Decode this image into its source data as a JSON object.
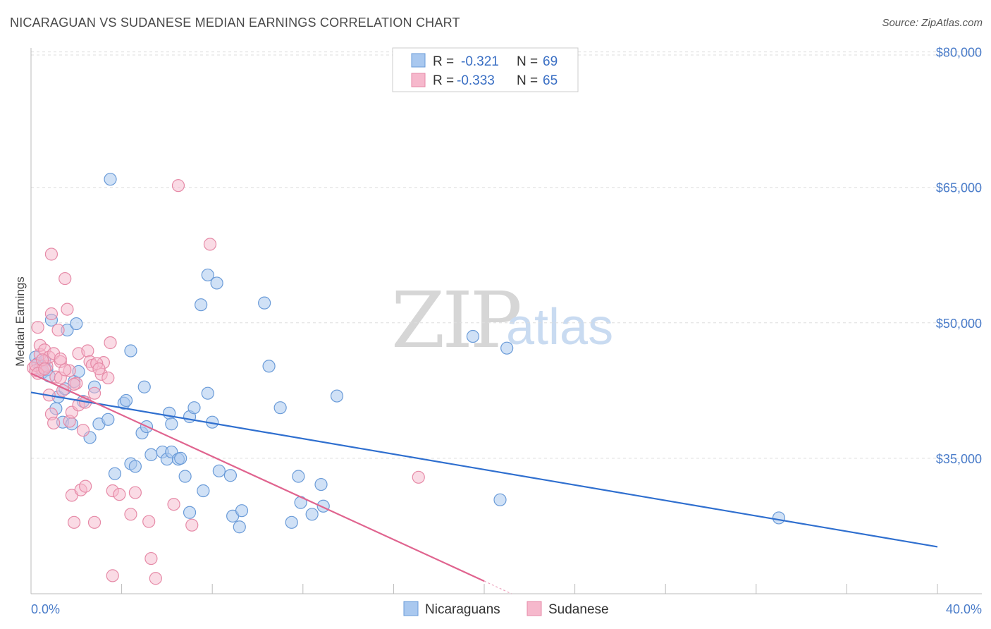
{
  "title": "NICARAGUAN VS SUDANESE MEDIAN EARNINGS CORRELATION CHART",
  "source": "Source: ZipAtlas.com",
  "watermark": {
    "zip": "ZIP",
    "atlas": "atlas"
  },
  "colors": {
    "blue_fill": "#a9c8ef",
    "blue_stroke": "#6a9bd8",
    "blue_line": "#2f6fcf",
    "pink_fill": "#f6b8cc",
    "pink_stroke": "#e68aa7",
    "pink_line": "#e0648f",
    "grid": "#dddddd",
    "axis_text": "#4a7cc9"
  },
  "legend": {
    "rows": [
      {
        "r_label": "R =",
        "r_value": "-0.321",
        "n_label": "N =",
        "n_value": "69"
      },
      {
        "r_label": "R =",
        "r_value": "-0.333",
        "n_label": "N =",
        "n_value": "65"
      }
    ]
  },
  "chart_data": {
    "type": "scatter",
    "title": "NICARAGUAN VS SUDANESE MEDIAN EARNINGS CORRELATION CHART",
    "xlabel": "",
    "ylabel": "Median Earnings",
    "xlim": [
      0,
      40
    ],
    "ylim": [
      20000,
      82000
    ],
    "x_tick_labels": {
      "left": "0.0%",
      "right": "40.0%"
    },
    "y_ticks": [
      {
        "value": 80000,
        "label": "$80,000"
      },
      {
        "value": 65000,
        "label": "$65,000"
      },
      {
        "value": 50000,
        "label": "$50,000"
      },
      {
        "value": 35000,
        "label": "$35,000"
      }
    ],
    "series": [
      {
        "name": "Nicaraguans",
        "r": -0.321,
        "n": 69,
        "trend": {
          "x": [
            0,
            40
          ],
          "y": [
            42300,
            25200
          ]
        },
        "points": [
          [
            0.2,
            46200
          ],
          [
            0.3,
            45500
          ],
          [
            0.4,
            45000
          ],
          [
            0.5,
            44500
          ],
          [
            0.6,
            45800
          ],
          [
            0.7,
            44800
          ],
          [
            0.8,
            44100
          ],
          [
            0.9,
            50300
          ],
          [
            1.1,
            40500
          ],
          [
            1.2,
            41800
          ],
          [
            1.4,
            39000
          ],
          [
            1.5,
            42700
          ],
          [
            1.6,
            49200
          ],
          [
            1.8,
            38800
          ],
          [
            1.9,
            43500
          ],
          [
            2.1,
            44600
          ],
          [
            2.0,
            49900
          ],
          [
            2.3,
            41300
          ],
          [
            2.6,
            37300
          ],
          [
            2.8,
            42900
          ],
          [
            3.0,
            38800
          ],
          [
            3.4,
            39300
          ],
          [
            3.7,
            33300
          ],
          [
            3.5,
            65900
          ],
          [
            4.1,
            41100
          ],
          [
            4.2,
            41400
          ],
          [
            4.4,
            46900
          ],
          [
            4.4,
            34400
          ],
          [
            4.6,
            34100
          ],
          [
            4.9,
            37800
          ],
          [
            5.0,
            42900
          ],
          [
            5.1,
            38500
          ],
          [
            5.3,
            35400
          ],
          [
            5.8,
            35700
          ],
          [
            6.0,
            34900
          ],
          [
            6.1,
            40000
          ],
          [
            6.2,
            38800
          ],
          [
            6.2,
            35700
          ],
          [
            6.5,
            34900
          ],
          [
            6.6,
            35000
          ],
          [
            6.8,
            33000
          ],
          [
            7.0,
            29000
          ],
          [
            7.0,
            39600
          ],
          [
            7.2,
            40600
          ],
          [
            7.5,
            52000
          ],
          [
            7.6,
            31400
          ],
          [
            7.8,
            55300
          ],
          [
            7.8,
            42200
          ],
          [
            8.0,
            39000
          ],
          [
            8.2,
            54400
          ],
          [
            8.3,
            33600
          ],
          [
            8.8,
            33100
          ],
          [
            8.9,
            28600
          ],
          [
            9.2,
            27400
          ],
          [
            9.3,
            29200
          ],
          [
            10.3,
            52200
          ],
          [
            10.5,
            45200
          ],
          [
            11.0,
            40600
          ],
          [
            11.5,
            27900
          ],
          [
            11.8,
            33000
          ],
          [
            11.9,
            30100
          ],
          [
            12.4,
            28800
          ],
          [
            12.8,
            32100
          ],
          [
            12.9,
            29700
          ],
          [
            13.5,
            41900
          ],
          [
            19.5,
            48500
          ],
          [
            20.7,
            30400
          ],
          [
            21.0,
            47200
          ],
          [
            33.0,
            28400
          ]
        ]
      },
      {
        "name": "Sudanese",
        "r": -0.333,
        "n": 65,
        "trend": {
          "x": [
            0,
            20
          ],
          "y": [
            44400,
            21400
          ]
        },
        "trend_dashed": {
          "x": [
            20,
            21.2
          ],
          "y": [
            21400,
            20000
          ]
        },
        "points": [
          [
            0.1,
            45000
          ],
          [
            0.2,
            44700
          ],
          [
            0.3,
            49500
          ],
          [
            0.4,
            46500
          ],
          [
            0.4,
            47500
          ],
          [
            0.5,
            44800
          ],
          [
            0.6,
            47000
          ],
          [
            0.7,
            45200
          ],
          [
            0.8,
            42000
          ],
          [
            0.8,
            46200
          ],
          [
            0.9,
            39900
          ],
          [
            0.9,
            57600
          ],
          [
            0.9,
            51000
          ],
          [
            1.0,
            38900
          ],
          [
            1.0,
            46600
          ],
          [
            1.1,
            44000
          ],
          [
            1.2,
            49200
          ],
          [
            1.3,
            45700
          ],
          [
            1.3,
            46000
          ],
          [
            1.4,
            42500
          ],
          [
            1.5,
            54900
          ],
          [
            1.6,
            51500
          ],
          [
            1.7,
            44700
          ],
          [
            1.7,
            39100
          ],
          [
            1.8,
            40100
          ],
          [
            1.8,
            30900
          ],
          [
            1.9,
            27900
          ],
          [
            2.0,
            43300
          ],
          [
            2.1,
            40900
          ],
          [
            2.1,
            46600
          ],
          [
            2.2,
            31500
          ],
          [
            2.3,
            38100
          ],
          [
            2.4,
            41200
          ],
          [
            2.4,
            31900
          ],
          [
            2.5,
            46900
          ],
          [
            2.6,
            45700
          ],
          [
            2.7,
            45300
          ],
          [
            2.8,
            42200
          ],
          [
            2.8,
            27900
          ],
          [
            3.1,
            44300
          ],
          [
            3.2,
            45600
          ],
          [
            3.4,
            43900
          ],
          [
            3.5,
            47800
          ],
          [
            3.6,
            31400
          ],
          [
            3.6,
            22000
          ],
          [
            3.9,
            31000
          ],
          [
            4.4,
            28800
          ],
          [
            4.6,
            31200
          ],
          [
            5.2,
            28000
          ],
          [
            5.3,
            23900
          ],
          [
            5.5,
            21700
          ],
          [
            6.3,
            29900
          ],
          [
            6.5,
            65200
          ],
          [
            7.1,
            27600
          ],
          [
            7.9,
            58700
          ],
          [
            17.1,
            32900
          ],
          [
            0.2,
            45300
          ],
          [
            0.5,
            45900
          ],
          [
            1.3,
            43900
          ],
          [
            1.9,
            43200
          ],
          [
            0.3,
            44400
          ],
          [
            0.6,
            44900
          ],
          [
            2.9,
            45500
          ],
          [
            1.5,
            44800
          ],
          [
            3.0,
            44900
          ]
        ]
      }
    ]
  }
}
